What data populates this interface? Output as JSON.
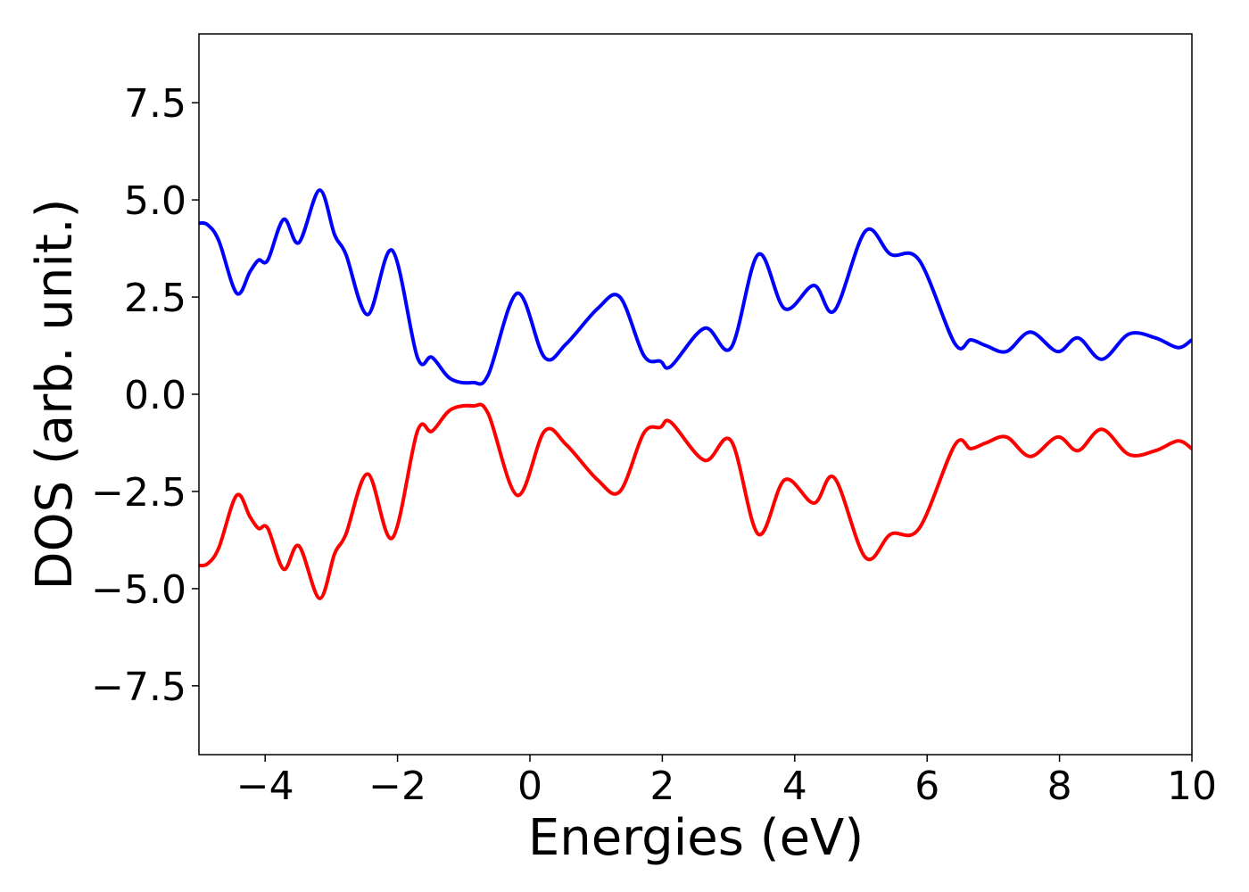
{
  "chart_data": {
    "type": "line",
    "xlabel": "Energies (eV)",
    "ylabel": "DOS (arb. unit.)",
    "xlim": [
      -5,
      10
    ],
    "ylim": [
      -9.27,
      9.27
    ],
    "xticks": [
      {
        "value": -4,
        "label": "−4"
      },
      {
        "value": -2,
        "label": "−2"
      },
      0,
      2,
      4,
      6,
      8,
      10
    ],
    "yticks": [
      {
        "value": -7.5,
        "label": "−7.5"
      },
      {
        "value": -5,
        "label": "−5.0"
      },
      {
        "value": -2.5,
        "label": "−2.5"
      },
      {
        "value": 0,
        "label": "0.0"
      },
      2.5,
      {
        "value": 5,
        "label": "5.0"
      },
      7.5
    ],
    "x": [
      -5,
      -4.87,
      -4.7,
      -4.43,
      -4.23,
      -4.1,
      -3.96,
      -3.72,
      -3.49,
      -3.18,
      -2.95,
      -2.78,
      -2.45,
      -2.08,
      -1.7,
      -1.48,
      -1.2,
      -0.86,
      -0.63,
      -0.19,
      0.22,
      0.55,
      1.02,
      1.36,
      1.72,
      1.97,
      2.13,
      2.64,
      3.04,
      3.45,
      3.85,
      4.29,
      4.6,
      5.07,
      5.45,
      5.88,
      6.42,
      6.66,
      6.89,
      7.2,
      7.56,
      7.97,
      8.28,
      8.64,
      9.05,
      9.45,
      9.79,
      10
    ],
    "series": [
      {
        "color": "#0000ff",
        "values": [
          4.4,
          4.36,
          3.95,
          2.6,
          3.15,
          3.45,
          3.45,
          4.5,
          3.9,
          5.25,
          4.1,
          3.6,
          2.05,
          3.7,
          0.95,
          0.95,
          0.4,
          0.3,
          0.5,
          2.6,
          0.95,
          1.3,
          2.2,
          2.5,
          1.0,
          0.85,
          0.72,
          1.7,
          1.2,
          3.6,
          2.2,
          2.8,
          2.15,
          4.2,
          3.6,
          3.45,
          1.3,
          1.4,
          1.25,
          1.1,
          1.6,
          1.1,
          1.45,
          0.9,
          1.55,
          1.45,
          1.2,
          1.4
        ]
      },
      {
        "color": "#ff0000",
        "values": [
          -4.4,
          -4.36,
          -3.95,
          -2.6,
          -3.15,
          -3.45,
          -3.45,
          -4.5,
          -3.9,
          -5.25,
          -4.1,
          -3.6,
          -2.05,
          -3.7,
          -0.95,
          -0.95,
          -0.4,
          -0.3,
          -0.5,
          -2.6,
          -0.95,
          -1.3,
          -2.2,
          -2.5,
          -1.0,
          -0.85,
          -0.72,
          -1.7,
          -1.2,
          -3.6,
          -2.2,
          -2.8,
          -2.15,
          -4.2,
          -3.6,
          -3.45,
          -1.3,
          -1.4,
          -1.25,
          -1.1,
          -1.6,
          -1.1,
          -1.45,
          -0.9,
          -1.55,
          -1.45,
          -1.2,
          -1.4
        ]
      }
    ]
  }
}
